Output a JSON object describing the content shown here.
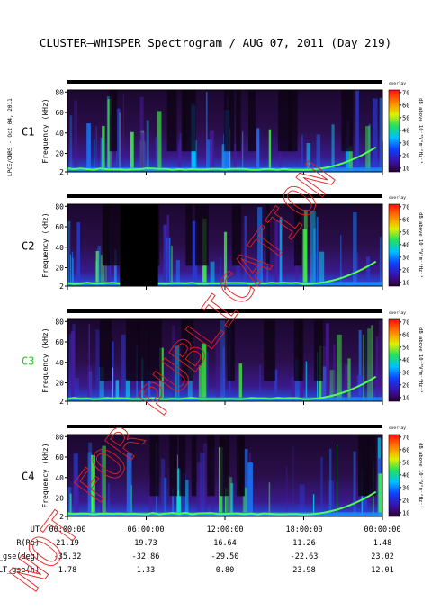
{
  "title": "CLUSTER–WHISPER Spectrogram / AUG 07, 2011 (Day 219)",
  "side_label": "LPCE/CNRS - Oct 04, 2011",
  "watermark": "NOT FOR PUBLICATION",
  "colorbar": {
    "label": "dB above 10⁻⁸V²m⁻²Hz⁻¹",
    "top_label": "overlay",
    "ticks": [
      10,
      20,
      30,
      40,
      50,
      60,
      70
    ]
  },
  "colors": {
    "title_default": "#000000",
    "c3_label": "#22c522",
    "watermark": "#e02020"
  },
  "chart_data": [
    {
      "type": "heatmap",
      "name": "C1",
      "ylabel": "Frequency (kHz)",
      "ylim": [
        2,
        82
      ],
      "yticks": [
        2,
        20,
        40,
        60,
        80
      ],
      "xlim_hours": [
        0,
        24
      ],
      "colorbar_range": [
        7,
        72
      ],
      "data_gaps_hours": []
    },
    {
      "type": "heatmap",
      "name": "C2",
      "ylabel": "Frequency (kHz)",
      "ylim": [
        2,
        82
      ],
      "yticks": [
        2,
        20,
        40,
        60,
        80
      ],
      "xlim_hours": [
        0,
        24
      ],
      "colorbar_range": [
        7,
        72
      ],
      "data_gaps_hours": [
        [
          4.0,
          6.9
        ]
      ]
    },
    {
      "type": "heatmap",
      "name": "C3",
      "ylabel": "Frequency (kHz)",
      "ylim": [
        2,
        82
      ],
      "yticks": [
        2,
        20,
        40,
        60,
        80
      ],
      "xlim_hours": [
        0,
        24
      ],
      "colorbar_range": [
        7,
        72
      ],
      "data_gaps_hours": []
    },
    {
      "type": "heatmap",
      "name": "C4",
      "ylabel": "Frequency (kHz)",
      "ylim": [
        2,
        82
      ],
      "yticks": [
        2,
        20,
        40,
        60,
        80
      ],
      "xlim_hours": [
        0,
        24
      ],
      "colorbar_range": [
        7,
        72
      ],
      "data_gaps_hours": []
    }
  ],
  "ephemeris": {
    "rows": [
      {
        "label": "UT",
        "values": [
          "00:00:00",
          "06:00:00",
          "12:00:00",
          "18:00:00",
          "00:00:00"
        ]
      },
      {
        "label": "R(Re)",
        "values": [
          "21.19",
          "19.73",
          "16.64",
          "11.26",
          "1.48"
        ]
      },
      {
        "label": "Lat_gse(deg)",
        "values": [
          "-35.32",
          "-32.86",
          "-29.50",
          "-22.63",
          "23.02"
        ]
      },
      {
        "label": "LT_gse(h)",
        "values": [
          "1.78",
          "1.33",
          "0.80",
          "23.98",
          "12.01"
        ]
      }
    ]
  }
}
